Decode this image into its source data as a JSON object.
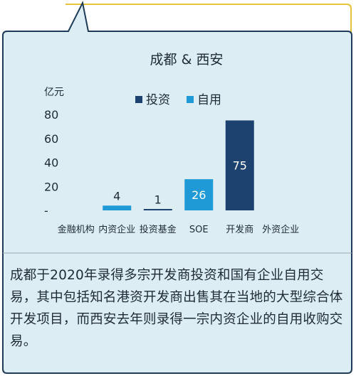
{
  "colors": {
    "background": "#dceef4",
    "frame": "#e6c33c",
    "border": "#1f3b57",
    "invest": "#1d4270",
    "self_use": "#1f9ad6",
    "divider": "#9aa7b2"
  },
  "caption": "成都于2020年录得多宗开发商投资和国有企业自用交易，其中包括知名港资开发商出售其在当地的大型综合体开发项目，而西安去年则录得一宗内资企业的自用收购交易。",
  "chart_data": {
    "type": "bar",
    "title": "成都 & 西安",
    "ylabel": "亿元",
    "ylim": [
      0,
      80
    ],
    "yticks": [
      "80",
      "60",
      "40",
      "20",
      "-"
    ],
    "categories": [
      "金融机构",
      "内资企业",
      "投资基金",
      "SOE",
      "开发商",
      "外资企业"
    ],
    "legend_position": "top-center",
    "series": [
      {
        "name": "投资",
        "color": "#1d4270",
        "values": [
          0,
          0,
          1,
          0,
          75,
          0
        ]
      },
      {
        "name": "自用",
        "color": "#1f9ad6",
        "values": [
          0,
          4,
          0,
          26,
          0,
          0
        ]
      }
    ],
    "data_labels": [
      "",
      "4",
      "1",
      "26",
      "75",
      ""
    ]
  }
}
